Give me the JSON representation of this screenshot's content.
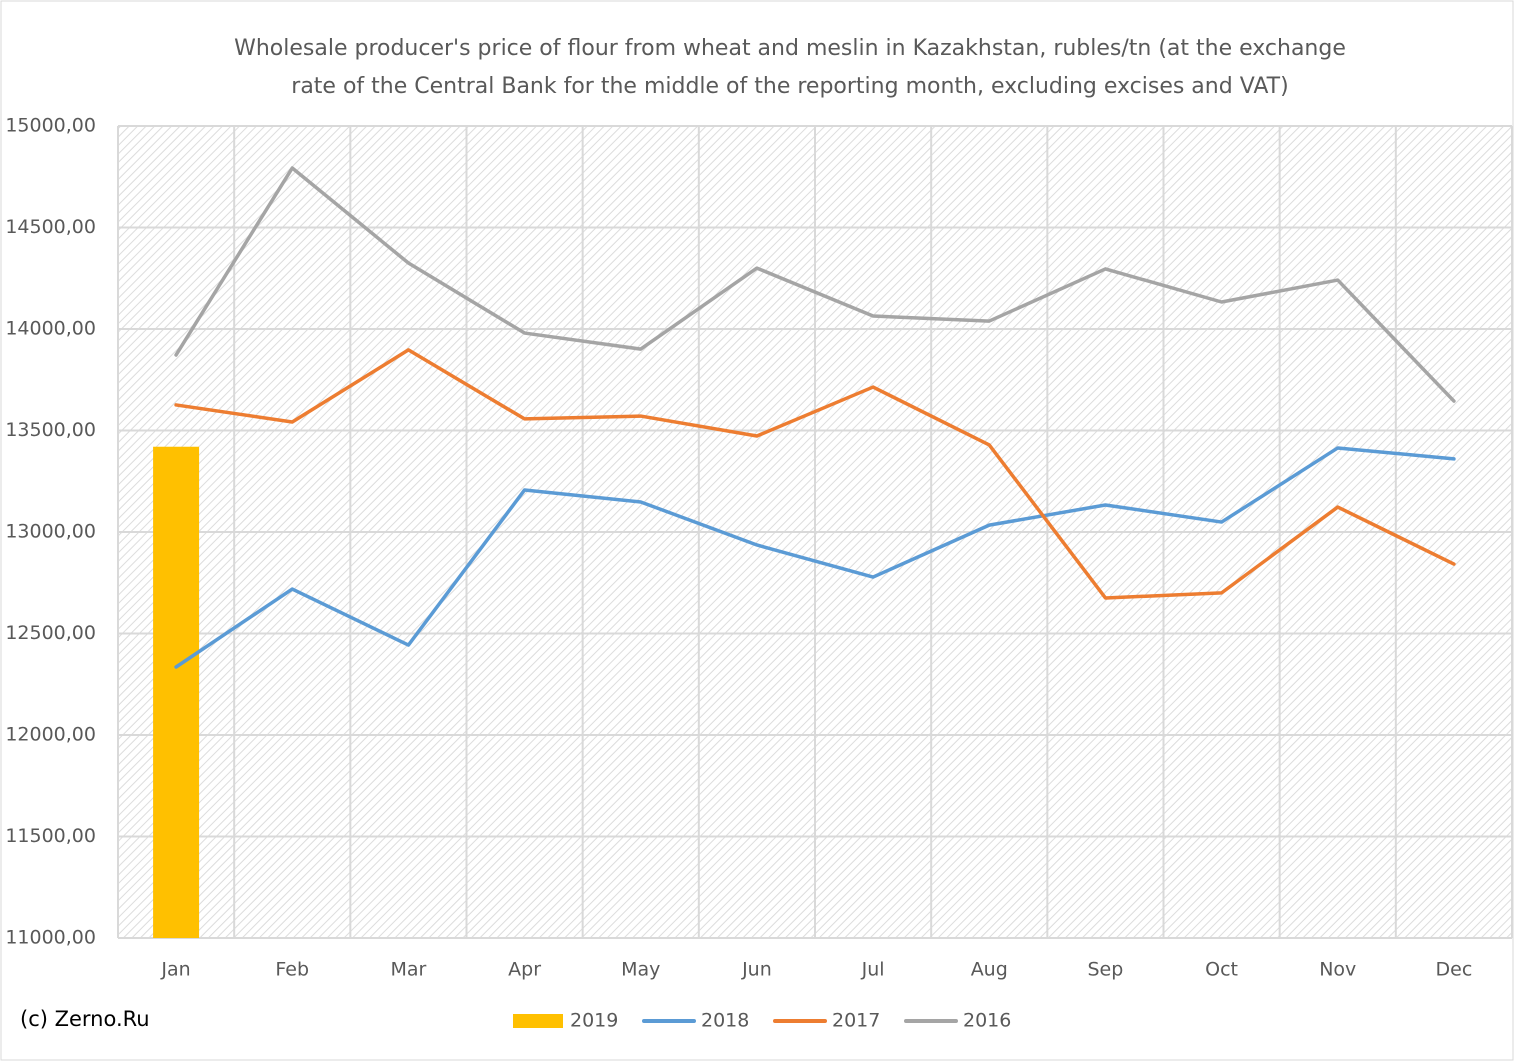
{
  "chart_data": {
    "type": "combo",
    "title": "Wholesale producer's price of flour from wheat and meslin in Kazakhstan, rubles/tn (at the exchange rate of the Central Bank for the middle of the reporting month, excluding excises and VAT)",
    "annotation": "(c) Zerno.Ru",
    "categories": [
      "Jan",
      "Feb",
      "Mar",
      "Apr",
      "May",
      "Jun",
      "Jul",
      "Aug",
      "Sep",
      "Oct",
      "Nov",
      "Dec"
    ],
    "series": [
      {
        "name": "2019",
        "type": "bar",
        "color": "#ffc000",
        "values": [
          13420,
          null,
          null,
          null,
          null,
          null,
          null,
          null,
          null,
          null,
          null,
          null
        ]
      },
      {
        "name": "2018",
        "type": "line",
        "color": "#5b9bd5",
        "values": [
          12335,
          12719,
          12443,
          13207,
          13148,
          12936,
          12778,
          13034,
          13133,
          13049,
          13414,
          13360
        ]
      },
      {
        "name": "2017",
        "type": "line",
        "color": "#ed7d31",
        "values": [
          13626,
          13542,
          13897,
          13557,
          13571,
          13473,
          13714,
          13429,
          12675,
          12700,
          13123,
          12842
        ]
      },
      {
        "name": "2016",
        "type": "line",
        "color": "#a5a5a5",
        "values": [
          13872,
          14793,
          14325,
          13980,
          13901,
          14300,
          14064,
          14039,
          14296,
          14133,
          14241,
          13645
        ]
      }
    ],
    "ylim": [
      11000,
      15000
    ],
    "yticks": [
      {
        "value": 11000,
        "label": "11000,00"
      },
      {
        "value": 11500,
        "label": "11500,00"
      },
      {
        "value": 12000,
        "label": "12000,00"
      },
      {
        "value": 12500,
        "label": "12500,00"
      },
      {
        "value": 13000,
        "label": "13000,00"
      },
      {
        "value": 13500,
        "label": "13500,00"
      },
      {
        "value": 14000,
        "label": "14000,00"
      },
      {
        "value": 14500,
        "label": "14500,00"
      },
      {
        "value": 15000,
        "label": "15000,00"
      }
    ],
    "grid": true,
    "legend": "bottom"
  }
}
